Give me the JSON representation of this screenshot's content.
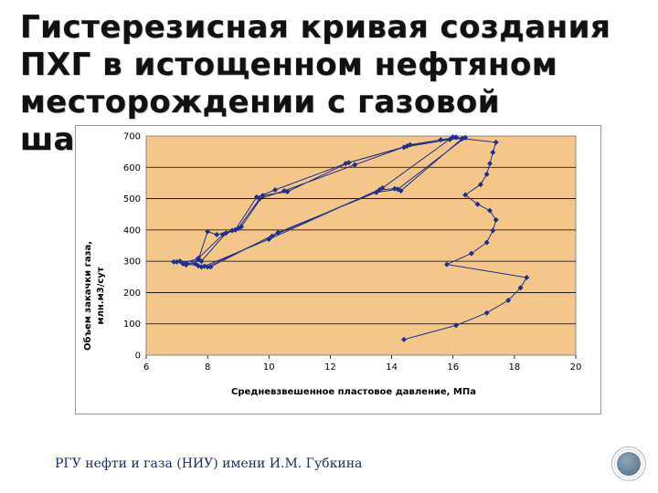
{
  "slide": {
    "title_lines": [
      "Гистерезисная кривая создания",
      "ПХГ в истощенном нефтяном",
      "месторождении с газовой шапкой"
    ],
    "footer": "РГУ нефти и газа (НИУ) имени И.М. Губкина"
  },
  "colors": {
    "plot_background": "#f5c68a",
    "series": "#1f2f8c",
    "gridline": "#000000"
  },
  "chart_data": {
    "type": "line",
    "title": "",
    "xlabel": "Средневзвешенное пластовое давление, МПа",
    "ylabel_lines": [
      "Объем закачки газа,",
      "млн.м3/сут"
    ],
    "xlim": [
      6,
      20
    ],
    "ylim": [
      0,
      700
    ],
    "xticks": [
      "6",
      "8",
      "10",
      "12",
      "14",
      "16",
      "18",
      "20"
    ],
    "yticks": [
      "0",
      "100",
      "200",
      "300",
      "400",
      "500",
      "600",
      "700"
    ],
    "grid": {
      "horizontal": true,
      "vertical": false
    },
    "legend": "none",
    "series": [
      {
        "name": "",
        "marker": "diamond",
        "points": [
          [
            14.4,
            50
          ],
          [
            16.1,
            95
          ],
          [
            17.1,
            135
          ],
          [
            17.8,
            175
          ],
          [
            18.2,
            215
          ],
          [
            18.4,
            248
          ],
          [
            15.8,
            290
          ],
          [
            16.6,
            325
          ],
          [
            17.1,
            360
          ],
          [
            17.3,
            398
          ],
          [
            17.4,
            432
          ],
          [
            17.2,
            462
          ],
          [
            16.8,
            482
          ],
          [
            16.4,
            512
          ],
          [
            16.9,
            545
          ],
          [
            17.1,
            578
          ],
          [
            17.2,
            612
          ],
          [
            17.3,
            648
          ],
          [
            17.4,
            680
          ],
          [
            16.3,
            692
          ],
          [
            15.6,
            688
          ],
          [
            14.5,
            668
          ],
          [
            12.6,
            615
          ],
          [
            10.6,
            522
          ],
          [
            9.8,
            510
          ],
          [
            9.1,
            410
          ],
          [
            8.8,
            398
          ],
          [
            8.3,
            385
          ],
          [
            8.0,
            395
          ],
          [
            7.7,
            305
          ],
          [
            7.3,
            288
          ],
          [
            7.1,
            300
          ],
          [
            6.9,
            298
          ],
          [
            7.6,
            292
          ],
          [
            7.8,
            282
          ],
          [
            8.0,
            282
          ],
          [
            10.1,
            380
          ],
          [
            13.6,
            528
          ],
          [
            14.1,
            532
          ],
          [
            14.3,
            525
          ],
          [
            16.3,
            692
          ],
          [
            16.1,
            696
          ],
          [
            14.6,
            672
          ],
          [
            12.8,
            608
          ],
          [
            10.5,
            525
          ],
          [
            9.7,
            500
          ],
          [
            9.0,
            405
          ],
          [
            8.6,
            390
          ],
          [
            7.8,
            300
          ],
          [
            7.0,
            298
          ],
          [
            7.7,
            285
          ],
          [
            8.1,
            282
          ],
          [
            10.3,
            392
          ],
          [
            13.5,
            520
          ],
          [
            14.2,
            530
          ],
          [
            16.4,
            695
          ],
          [
            15.9,
            689
          ],
          [
            14.4,
            664
          ],
          [
            12.5,
            612
          ],
          [
            10.2,
            528
          ],
          [
            9.6,
            505
          ],
          [
            8.9,
            400
          ],
          [
            8.5,
            385
          ],
          [
            7.7,
            310
          ],
          [
            7.2,
            292
          ],
          [
            7.9,
            284
          ],
          [
            10.0,
            370
          ],
          [
            13.7,
            534
          ],
          [
            16.0,
            697
          ]
        ]
      }
    ]
  }
}
